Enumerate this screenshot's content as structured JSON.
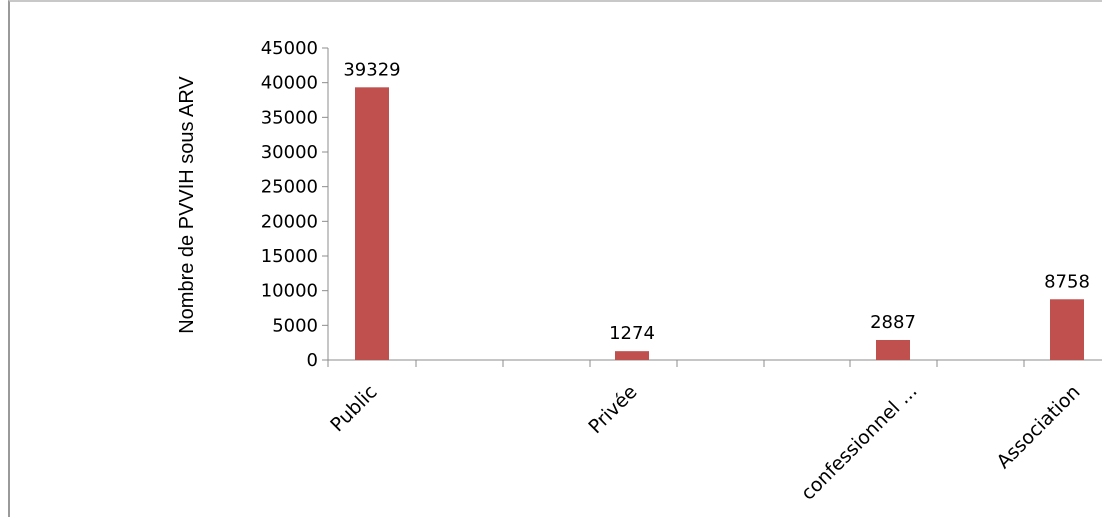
{
  "chart_data": {
    "type": "bar",
    "title": "",
    "xlabel": "",
    "ylabel": "Nombre de PVVIH sous ARV",
    "categories": [
      "Public",
      "Privée",
      "confessionnel ...",
      "Association"
    ],
    "values": [
      39329,
      1274,
      2887,
      8758
    ],
    "data_labels": [
      "39329",
      "1274",
      "2887",
      "8758"
    ],
    "ylim": [
      0,
      45000
    ],
    "yticks": [
      "0",
      "5000",
      "10000",
      "15000",
      "20000",
      "25000",
      "30000",
      "35000",
      "40000",
      "45000"
    ],
    "grid": false,
    "legend": "none",
    "bar_color": "#C0504D"
  }
}
